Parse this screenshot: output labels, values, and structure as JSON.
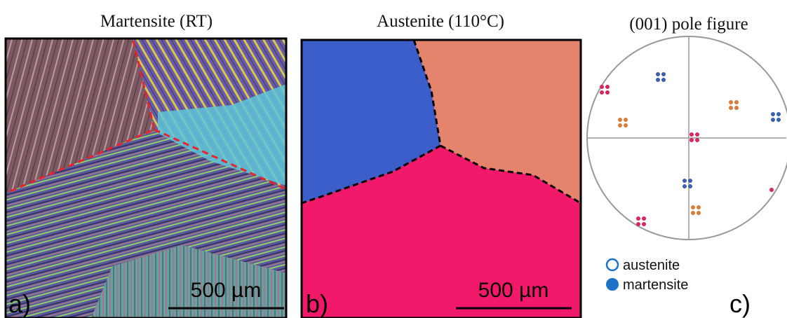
{
  "panels": [
    {
      "title": "Martensite (RT)",
      "label": "a)",
      "scale_bar": "500 µm"
    },
    {
      "title": "Austenite (110°C)",
      "label": "b)",
      "scale_bar": "500 µm"
    },
    {
      "title": "(001) pole figure",
      "label": "c)",
      "legend": [
        "austenite",
        "martensite"
      ]
    }
  ]
}
